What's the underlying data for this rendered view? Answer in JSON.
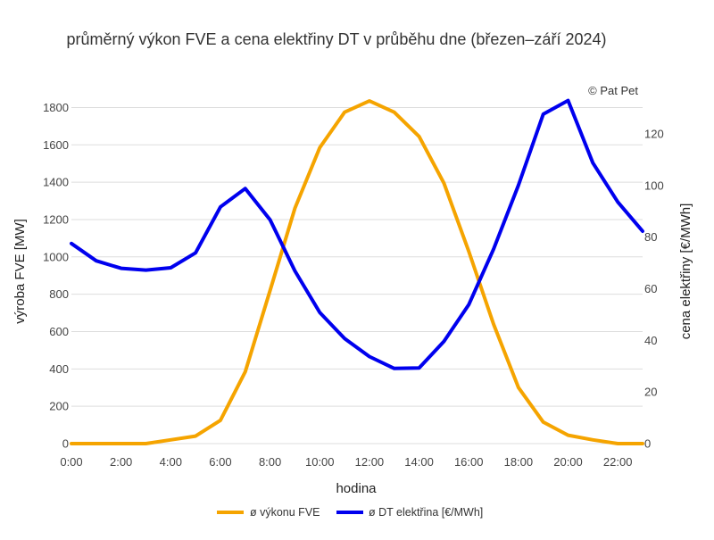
{
  "chart_data": {
    "type": "line",
    "title": "průměrný výkon FVE a cena elektřiny DT v průběhu dne (březen–září 2024)",
    "credit": "© Pat Pet",
    "xlabel": "hodina",
    "ylabel_left": "výroba FVE [MW]",
    "ylabel_right": "cena elektřiny [€/MWh]",
    "x": [
      0,
      1,
      2,
      3,
      4,
      5,
      6,
      7,
      8,
      9,
      10,
      11,
      12,
      13,
      14,
      15,
      16,
      17,
      18,
      19,
      20,
      21,
      22,
      23
    ],
    "x_ticks": [
      {
        "value": 0,
        "label": "0:00"
      },
      {
        "value": 2,
        "label": "2:00"
      },
      {
        "value": 4,
        "label": "4:00"
      },
      {
        "value": 6,
        "label": "6:00"
      },
      {
        "value": 8,
        "label": "8:00"
      },
      {
        "value": 10,
        "label": "10:00"
      },
      {
        "value": 12,
        "label": "12:00"
      },
      {
        "value": 14,
        "label": "14:00"
      },
      {
        "value": 16,
        "label": "16:00"
      },
      {
        "value": 18,
        "label": "18:00"
      },
      {
        "value": 20,
        "label": "20:00"
      },
      {
        "value": 22,
        "label": "22:00"
      }
    ],
    "y_left_ticks": [
      "0",
      "200",
      "400",
      "600",
      "800",
      "1000",
      "1200",
      "1400",
      "1600",
      "1800"
    ],
    "y_right_ticks": [
      "0",
      "20",
      "40",
      "60",
      "80",
      "100",
      "120"
    ],
    "ylim_left": [
      0,
      1850
    ],
    "ylim_right": [
      0,
      133.8
    ],
    "grid": true,
    "legend_position": "bottom-center",
    "series": [
      {
        "name": "ø výkonu FVE",
        "axis": "left",
        "color": "#f5a400",
        "values": [
          0,
          0,
          0,
          0,
          20,
          40,
          125,
          385,
          820,
          1260,
          1585,
          1775,
          1835,
          1775,
          1645,
          1395,
          1030,
          640,
          300,
          115,
          45,
          20,
          0,
          0
        ]
      },
      {
        "name": "ø DT elektřina [€/MWh]",
        "axis": "right",
        "color": "#0000ee",
        "values": [
          77.5,
          70.8,
          67.9,
          67.2,
          68.1,
          73.9,
          91.7,
          98.8,
          86.7,
          66.9,
          50.8,
          40.7,
          33.7,
          29.1,
          29.3,
          39.6,
          53.8,
          75.3,
          100.1,
          127.6,
          132.9,
          108.7,
          93.6,
          82.3
        ]
      }
    ]
  }
}
